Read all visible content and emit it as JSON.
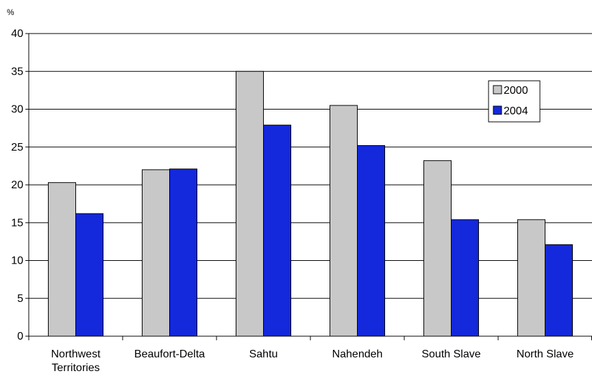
{
  "chart_data": {
    "type": "bar",
    "title": "",
    "ylabel": "%",
    "xlabel": "",
    "categories": [
      "Northwest Territories",
      "Beaufort-Delta",
      "Sahtu",
      "Nahendeh",
      "South Slave",
      "North Slave"
    ],
    "category_lines": [
      [
        "Northwest",
        "Territories"
      ],
      [
        "Beaufort-Delta"
      ],
      [
        "Sahtu"
      ],
      [
        "Nahendeh"
      ],
      [
        "South Slave"
      ],
      [
        "North Slave"
      ]
    ],
    "ylim": [
      0,
      40
    ],
    "yticks": [
      "0",
      "5",
      "10",
      "15",
      "20",
      "25",
      "30",
      "35",
      "40"
    ],
    "grid": true,
    "legend": "top-right",
    "series": [
      {
        "name": "2000",
        "color": "#c8c8c8",
        "values": [
          20.3,
          22.0,
          35.0,
          30.5,
          23.2,
          15.4
        ]
      },
      {
        "name": "2004",
        "color": "#1428dc",
        "values": [
          16.2,
          22.1,
          27.9,
          25.2,
          15.4,
          12.1
        ]
      }
    ]
  }
}
